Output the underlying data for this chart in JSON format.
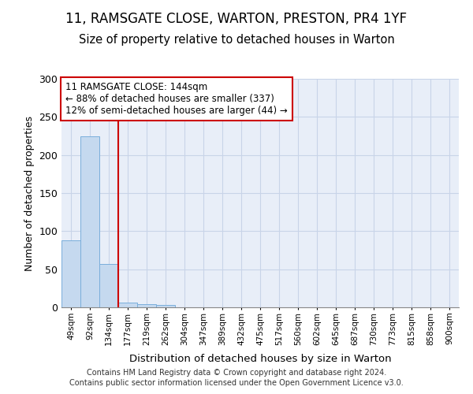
{
  "title": "11, RAMSGATE CLOSE, WARTON, PRESTON, PR4 1YF",
  "subtitle": "Size of property relative to detached houses in Warton",
  "xlabel": "Distribution of detached houses by size in Warton",
  "ylabel": "Number of detached properties",
  "bins": [
    "49sqm",
    "92sqm",
    "134sqm",
    "177sqm",
    "219sqm",
    "262sqm",
    "304sqm",
    "347sqm",
    "389sqm",
    "432sqm",
    "475sqm",
    "517sqm",
    "560sqm",
    "602sqm",
    "645sqm",
    "687sqm",
    "730sqm",
    "773sqm",
    "815sqm",
    "858sqm",
    "900sqm"
  ],
  "values": [
    88,
    225,
    57,
    6,
    4,
    3,
    0,
    0,
    0,
    0,
    0,
    0,
    0,
    0,
    0,
    0,
    0,
    0,
    0,
    0
  ],
  "bar_color": "#c5d9ef",
  "bar_edge_color": "#7aaedb",
  "vline_color": "#cc0000",
  "annotation_text": "11 RAMSGATE CLOSE: 144sqm\n← 88% of detached houses are smaller (337)\n12% of semi-detached houses are larger (44) →",
  "annotation_box_color": "#ffffff",
  "annotation_box_edge": "#cc0000",
  "ylim": [
    0,
    300
  ],
  "yticks": [
    0,
    50,
    100,
    150,
    200,
    250,
    300
  ],
  "grid_color": "#c8d4e8",
  "background_color": "#e8eef8",
  "footer_line1": "Contains HM Land Registry data © Crown copyright and database right 2024.",
  "footer_line2": "Contains public sector information licensed under the Open Government Licence v3.0.",
  "title_fontsize": 12,
  "subtitle_fontsize": 10.5,
  "footer_fontsize": 7
}
